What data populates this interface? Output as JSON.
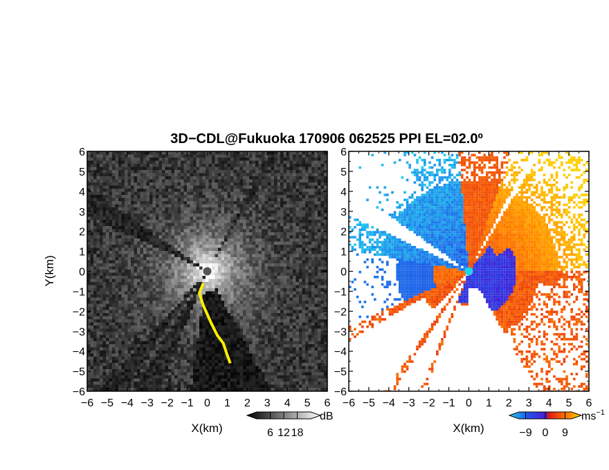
{
  "title": "3D−CDL@Fukuoka 170906 062525 PPI EL=02.0º",
  "colors": {
    "background": "#ffffff",
    "frame": "#000000",
    "center_marker_left": "#555555",
    "center_marker_right": "#22d3e6",
    "highlight_band": "#ffee00"
  },
  "chart_data": [
    {
      "name": "",
      "type": "heatmap",
      "quantity": "reflectivity",
      "xlabel": "X(km)",
      "ylabel": "Y(km)",
      "xlim": [
        -6,
        6
      ],
      "ylim": [
        -6,
        6
      ],
      "x_ticks": [
        "−6",
        "−5",
        "−4",
        "−3",
        "−2",
        "−1",
        "0",
        "1",
        "2",
        "3",
        "4",
        "5",
        "6"
      ],
      "y_ticks": [
        "6",
        "5",
        "4",
        "3",
        "2",
        "1",
        "0",
        "−1",
        "−2",
        "−3",
        "−4",
        "−5",
        "−6"
      ],
      "colormap": "grayscale",
      "colorbar": {
        "unit": "dB",
        "tick_labels": [
          "6",
          "12",
          "18"
        ],
        "tick_values": [
          6,
          12,
          18
        ],
        "range": [
          0,
          24
        ]
      },
      "blocked_sectors_deg_cw_from_north": [
        [
          295,
          305
        ],
        [
          215,
          222
        ],
        [
          202,
          212
        ],
        [
          28,
          31
        ]
      ],
      "no_echo_sector_deg_cw_from_north": [
        152,
        188
      ],
      "highlight_contour_km": [
        [
          -0.2,
          -0.6
        ],
        [
          -0.4,
          -1.1
        ],
        [
          -0.2,
          -1.7
        ],
        [
          0.2,
          -2.6
        ],
        [
          0.5,
          -3.2
        ],
        [
          0.8,
          -3.6
        ],
        [
          1.0,
          -4.2
        ],
        [
          1.15,
          -4.6
        ]
      ]
    },
    {
      "name": "",
      "type": "heatmap",
      "quantity": "doppler velocity",
      "xlabel": "X(km)",
      "xlim": [
        -6,
        6
      ],
      "ylim": [
        -6,
        6
      ],
      "x_ticks": [
        "−6",
        "−5",
        "−4",
        "−3",
        "−2",
        "−1",
        "0",
        "1",
        "2",
        "3",
        "4",
        "5",
        "6"
      ],
      "y_ticks": [
        "6",
        "5",
        "4",
        "3",
        "2",
        "1",
        "0",
        "−1",
        "−2",
        "−3",
        "−4",
        "−5",
        "−6"
      ],
      "colormap": "cyan-blue-red-orange-yellow",
      "colorbar": {
        "unit": "ms",
        "unit_exponent": "−1",
        "tick_labels": [
          "−9",
          "0",
          "9"
        ],
        "tick_values": [
          -9,
          0,
          9
        ],
        "range": [
          -12,
          12
        ]
      },
      "velocity_regions": [
        {
          "region": "north-west far",
          "value": -10
        },
        {
          "region": "near field south-east",
          "value": -3
        },
        {
          "region": "north",
          "value": 5
        },
        {
          "region": "north-east far",
          "value": 10
        },
        {
          "region": "south",
          "value": 5
        }
      ]
    }
  ]
}
